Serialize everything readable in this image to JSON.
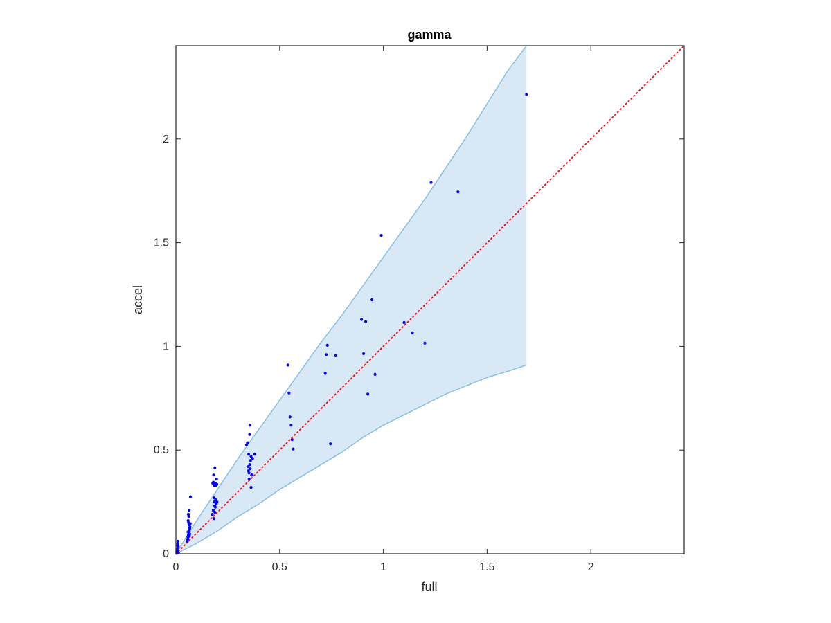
{
  "chart_data": {
    "type": "scatter",
    "title": "gamma",
    "xlabel": "full",
    "ylabel": "accel",
    "xlim": [
      0,
      2.45
    ],
    "ylim": [
      0,
      2.45
    ],
    "xticks": [
      0,
      0.5,
      1,
      1.5,
      2
    ],
    "yticks": [
      0,
      0.5,
      1,
      1.5,
      2
    ],
    "xtick_labels": [
      "0",
      "0.5",
      "1",
      "1.5",
      "2"
    ],
    "ytick_labels": [
      "0",
      "0.5",
      "1",
      "1.5",
      "2"
    ],
    "grid": false,
    "colors": {
      "points": "#0000ff",
      "band_fill": "#d9e8f5",
      "band_edge": "#85bfe3",
      "reference": "#ff0000",
      "axes": "#262626"
    },
    "band": {
      "x": [
        0,
        0.1,
        0.2,
        0.3,
        0.4,
        0.5,
        0.6,
        0.7,
        0.8,
        0.9,
        1.0,
        1.1,
        1.2,
        1.3,
        1.4,
        1.5,
        1.6,
        1.69
      ],
      "upper": [
        0,
        0.16,
        0.31,
        0.46,
        0.6,
        0.74,
        0.88,
        1.02,
        1.15,
        1.29,
        1.43,
        1.57,
        1.71,
        1.86,
        2.01,
        2.17,
        2.33,
        2.45
      ],
      "lower": [
        0,
        0.05,
        0.11,
        0.18,
        0.24,
        0.31,
        0.37,
        0.43,
        0.49,
        0.56,
        0.62,
        0.67,
        0.72,
        0.77,
        0.81,
        0.85,
        0.88,
        0.91
      ]
    },
    "reference_line": {
      "x": [
        0,
        2.45
      ],
      "y": [
        0,
        2.45
      ]
    },
    "series": [
      {
        "x": [
          0.005,
          0.008,
          0.01,
          0.012,
          0.004,
          0.006,
          0.009,
          0.011,
          0.007,
          0.005,
          0.055,
          0.058,
          0.06,
          0.062,
          0.064,
          0.066,
          0.068,
          0.063,
          0.061,
          0.059,
          0.057,
          0.065,
          0.067,
          0.07,
          0.062,
          0.06,
          0.064,
          0.058,
          0.066,
          0.069,
          0.175,
          0.18,
          0.185,
          0.178,
          0.182,
          0.188,
          0.19,
          0.186,
          0.192,
          0.195,
          0.183,
          0.188,
          0.193,
          0.196,
          0.198,
          0.187,
          0.181,
          0.184,
          0.19,
          0.197,
          0.34,
          0.345,
          0.35,
          0.355,
          0.348,
          0.352,
          0.357,
          0.36,
          0.362,
          0.365,
          0.358,
          0.353,
          0.368,
          0.38,
          0.37,
          0.362,
          0.356,
          0.349,
          0.54,
          0.545,
          0.55,
          0.555,
          0.56,
          0.565,
          0.72,
          0.725,
          0.73,
          0.745,
          0.77,
          0.895,
          0.905,
          0.915,
          0.925,
          0.945,
          0.96,
          0.99,
          1.1,
          1.14,
          1.2,
          1.23,
          1.36,
          1.69
        ],
        "y": [
          0.02,
          0.04,
          0.06,
          0.005,
          0.01,
          0.025,
          0.05,
          0.035,
          0.015,
          0.002,
          0.06,
          0.08,
          0.09,
          0.1,
          0.11,
          0.12,
          0.13,
          0.14,
          0.15,
          0.16,
          0.07,
          0.085,
          0.095,
          0.275,
          0.18,
          0.19,
          0.21,
          0.105,
          0.125,
          0.145,
          0.19,
          0.21,
          0.25,
          0.34,
          0.38,
          0.415,
          0.34,
          0.33,
          0.26,
          0.24,
          0.17,
          0.2,
          0.33,
          0.36,
          0.25,
          0.23,
          0.345,
          0.27,
          0.225,
          0.335,
          0.525,
          0.535,
          0.48,
          0.575,
          0.42,
          0.39,
          0.62,
          0.45,
          0.47,
          0.38,
          0.41,
          0.36,
          0.38,
          0.48,
          0.46,
          0.32,
          0.43,
          0.4,
          0.91,
          0.775,
          0.66,
          0.62,
          0.55,
          0.505,
          0.87,
          0.96,
          1.005,
          0.53,
          0.955,
          1.13,
          0.965,
          1.12,
          0.77,
          1.225,
          0.865,
          1.535,
          1.115,
          1.065,
          1.015,
          1.79,
          1.745,
          2.215
        ]
      }
    ]
  }
}
